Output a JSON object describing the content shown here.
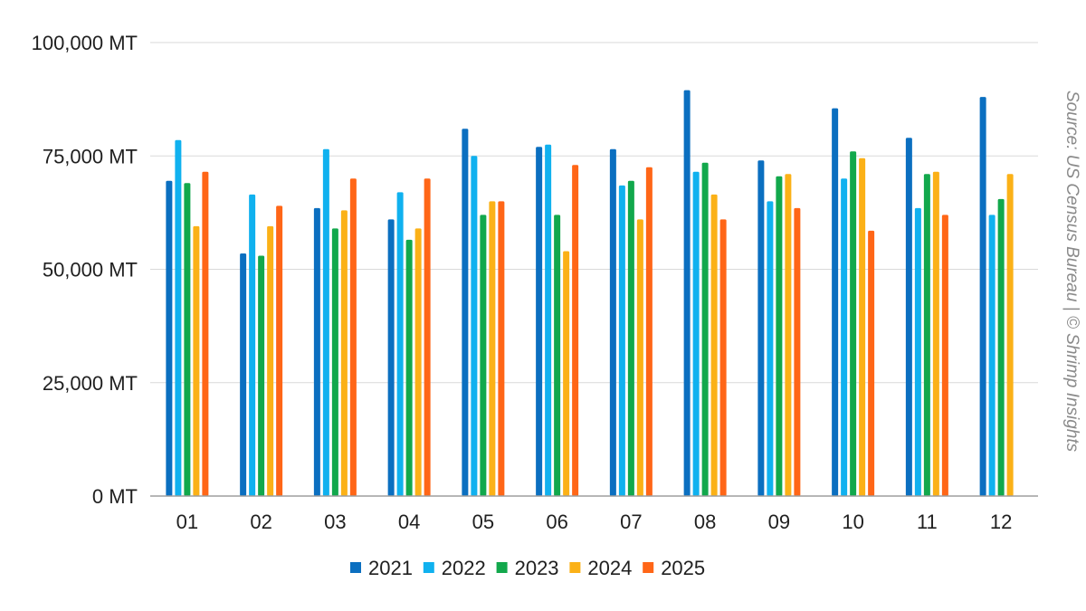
{
  "chart_data": {
    "type": "bar",
    "categories": [
      "01",
      "02",
      "03",
      "04",
      "05",
      "06",
      "07",
      "08",
      "09",
      "10",
      "11",
      "12"
    ],
    "series": [
      {
        "name": "2021",
        "color": "#0b6fc0",
        "values": [
          69500,
          53500,
          63500,
          61000,
          81000,
          77000,
          76500,
          89500,
          74000,
          85500,
          79000,
          88000
        ]
      },
      {
        "name": "2022",
        "color": "#10b1ef",
        "values": [
          78500,
          66500,
          76500,
          67000,
          75000,
          77500,
          68500,
          71500,
          65000,
          70000,
          63500,
          62000
        ]
      },
      {
        "name": "2023",
        "color": "#12a84c",
        "values": [
          69000,
          53000,
          59000,
          56500,
          62000,
          62000,
          69500,
          73500,
          70500,
          76000,
          71000,
          65500
        ]
      },
      {
        "name": "2024",
        "color": "#fbb117",
        "values": [
          59500,
          59500,
          63000,
          59000,
          65000,
          54000,
          61000,
          66500,
          71000,
          74500,
          71500,
          71000
        ]
      },
      {
        "name": "2025",
        "color": "#ff6617",
        "values": [
          71500,
          64000,
          70000,
          70000,
          65000,
          73000,
          72500,
          61000,
          63500,
          58500,
          62000,
          null
        ]
      }
    ],
    "y_ticks": [
      "0 MT",
      "25,000 MT",
      "50,000 MT",
      "75,000 MT",
      "100,000 MT"
    ],
    "y_tick_values": [
      0,
      25000,
      50000,
      75000,
      100000
    ],
    "ylim": [
      0,
      100000
    ],
    "grid": true,
    "legend_position": "bottom",
    "source_note": "Source: US Census Bureau | © Shrimp Insights"
  }
}
